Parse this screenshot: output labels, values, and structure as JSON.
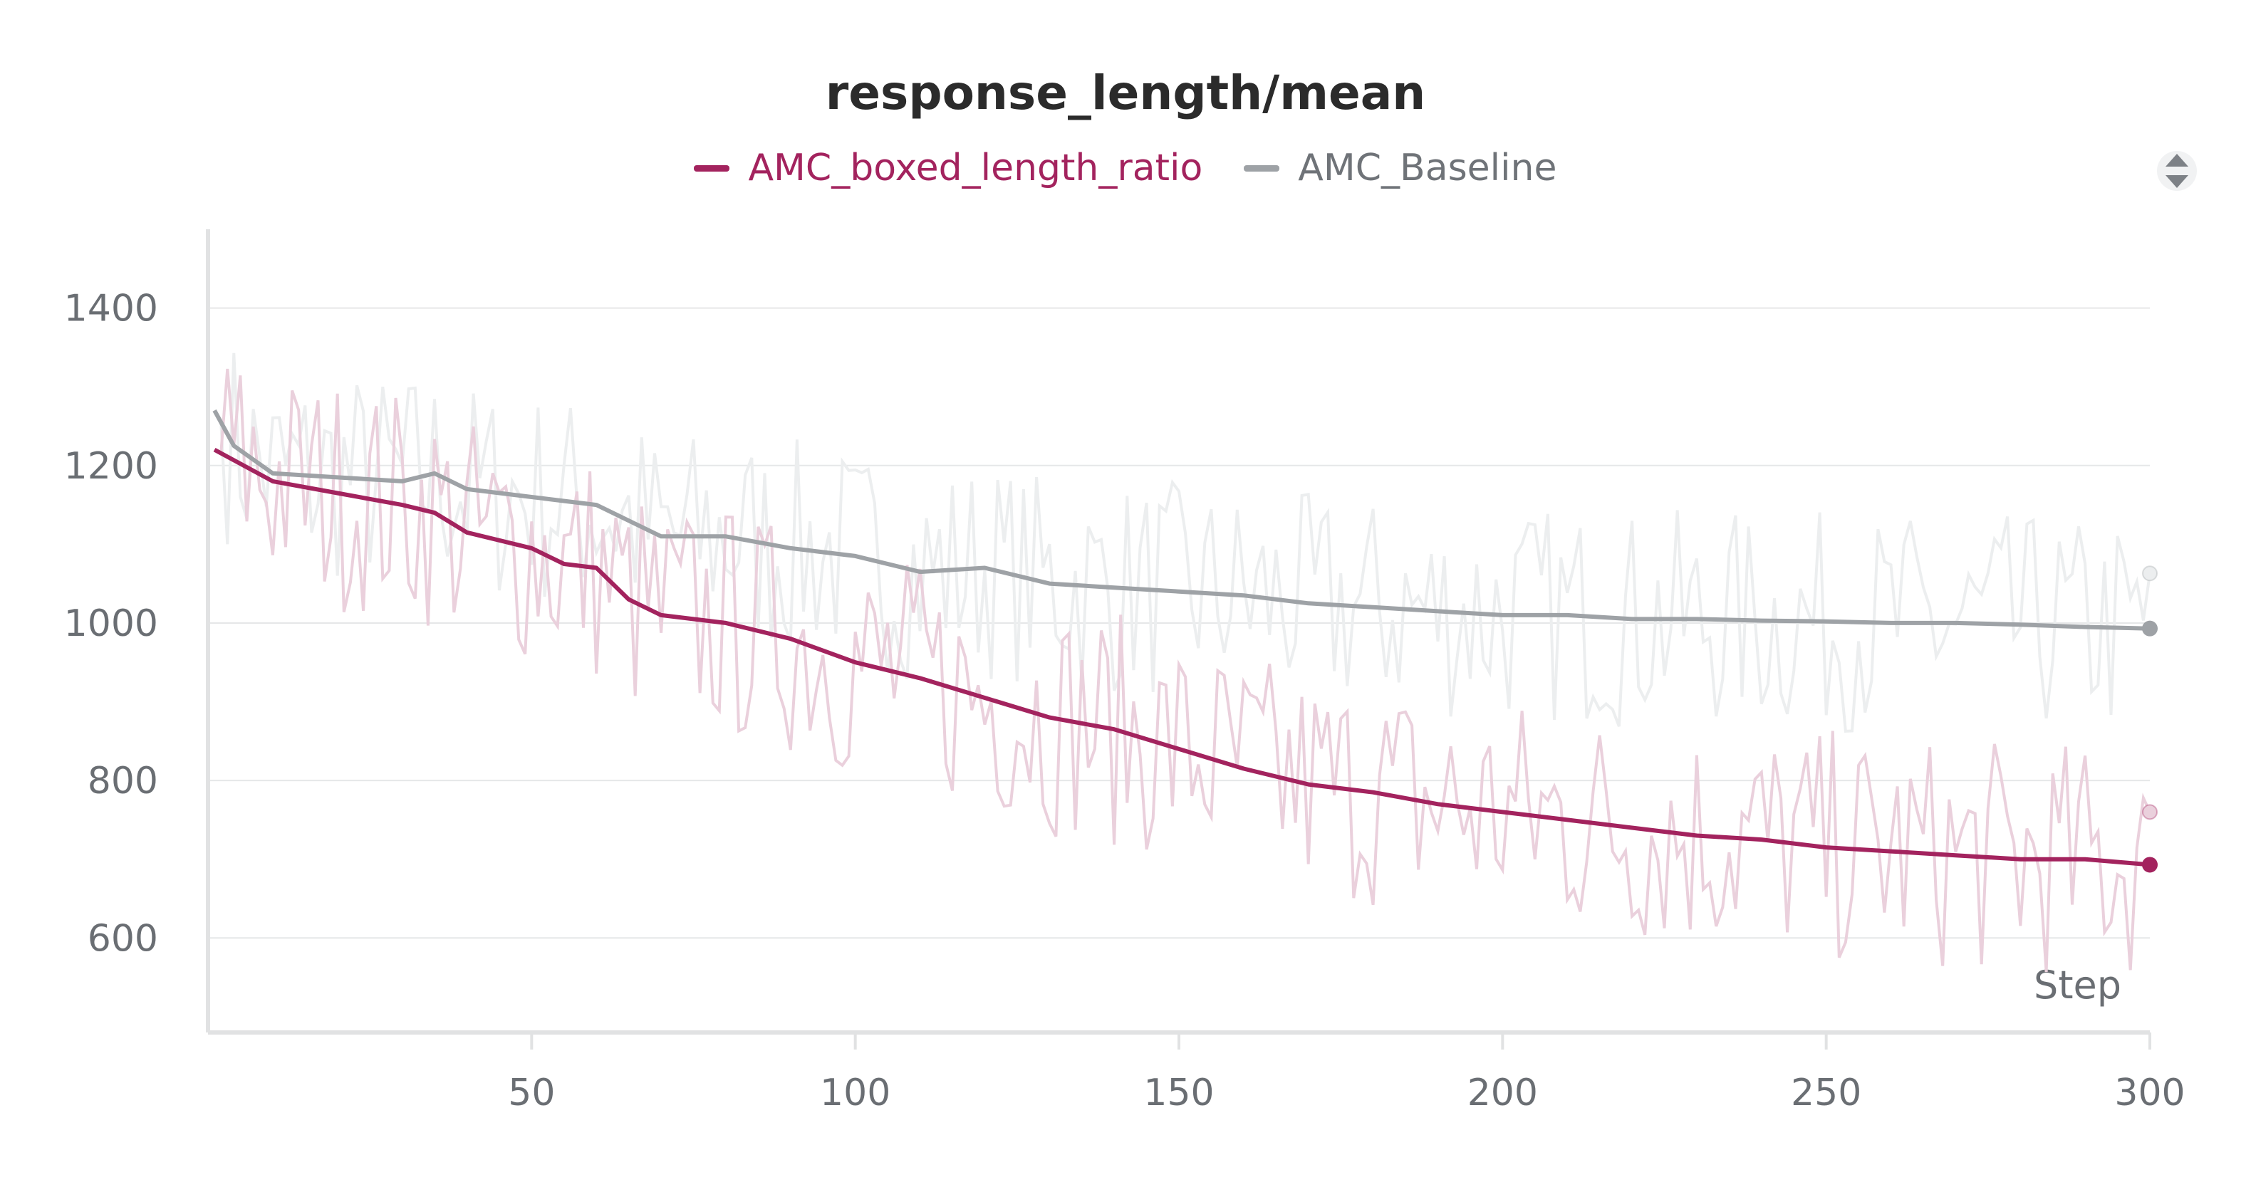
{
  "chart_data": {
    "type": "line",
    "title": "response_length/mean",
    "xlabel": "Step",
    "ylabel": "",
    "xlim": [
      0,
      300
    ],
    "ylim": [
      480,
      1500
    ],
    "x_ticks": [
      50,
      100,
      150,
      200,
      250,
      300
    ],
    "y_ticks": [
      600,
      800,
      1000,
      1200,
      1400
    ],
    "grid": true,
    "legend_position": "top-center",
    "series": [
      {
        "name": "AMC_boxed_length_ratio",
        "color": "#a3235e",
        "raw_color": "#ead0dc",
        "smoothed": [
          [
            1,
            1220
          ],
          [
            10,
            1180
          ],
          [
            20,
            1165
          ],
          [
            30,
            1150
          ],
          [
            35,
            1140
          ],
          [
            40,
            1115
          ],
          [
            50,
            1095
          ],
          [
            55,
            1075
          ],
          [
            60,
            1070
          ],
          [
            65,
            1030
          ],
          [
            70,
            1010
          ],
          [
            80,
            1000
          ],
          [
            90,
            980
          ],
          [
            100,
            950
          ],
          [
            110,
            930
          ],
          [
            120,
            905
          ],
          [
            130,
            880
          ],
          [
            140,
            865
          ],
          [
            150,
            840
          ],
          [
            160,
            815
          ],
          [
            170,
            795
          ],
          [
            180,
            785
          ],
          [
            190,
            770
          ],
          [
            200,
            760
          ],
          [
            210,
            750
          ],
          [
            220,
            740
          ],
          [
            230,
            730
          ],
          [
            240,
            725
          ],
          [
            250,
            715
          ],
          [
            260,
            710
          ],
          [
            270,
            705
          ],
          [
            280,
            700
          ],
          [
            290,
            700
          ],
          [
            300,
            693
          ]
        ],
        "last_raw": 760
      },
      {
        "name": "AMC_Baseline",
        "color": "#9ea2a6",
        "raw_color": "#eceeef",
        "smoothed": [
          [
            1,
            1270
          ],
          [
            4,
            1225
          ],
          [
            10,
            1190
          ],
          [
            20,
            1185
          ],
          [
            30,
            1180
          ],
          [
            35,
            1190
          ],
          [
            40,
            1170
          ],
          [
            50,
            1160
          ],
          [
            60,
            1150
          ],
          [
            65,
            1130
          ],
          [
            70,
            1110
          ],
          [
            80,
            1110
          ],
          [
            90,
            1095
          ],
          [
            100,
            1085
          ],
          [
            110,
            1065
          ],
          [
            120,
            1070
          ],
          [
            130,
            1050
          ],
          [
            140,
            1045
          ],
          [
            150,
            1040
          ],
          [
            160,
            1035
          ],
          [
            170,
            1025
          ],
          [
            180,
            1020
          ],
          [
            190,
            1015
          ],
          [
            200,
            1010
          ],
          [
            210,
            1010
          ],
          [
            220,
            1005
          ],
          [
            230,
            1005
          ],
          [
            240,
            1003
          ],
          [
            250,
            1002
          ],
          [
            260,
            1000
          ],
          [
            270,
            1000
          ],
          [
            280,
            998
          ],
          [
            290,
            995
          ],
          [
            300,
            993
          ]
        ],
        "last_raw": 1063
      }
    ]
  }
}
